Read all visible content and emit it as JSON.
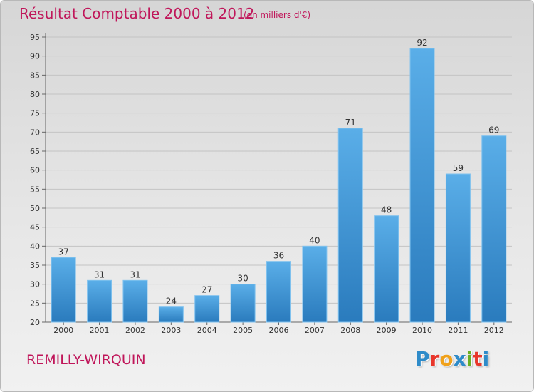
{
  "header": {
    "title": "Résultat Comptable 2000 à 2012",
    "unit": "(en milliers d'€)"
  },
  "footer": {
    "location": "REMILLY-WIRQUIN",
    "logo_text": "Proxiti",
    "logo_colors": [
      "#2e8bc9",
      "#e8362b",
      "#f0a11b",
      "#2e8bc9",
      "#6ab023",
      "#e8362b",
      "#2e8bc9"
    ]
  },
  "colors": {
    "title": "#c0165a",
    "bar_top": "#5aaee8",
    "bar_bottom": "#2a7bbd",
    "grid": "#c4c4c4",
    "text": "#333333"
  },
  "chart_data": {
    "type": "bar",
    "title": "Résultat Comptable 2000 à 2012",
    "subtitle": "(en milliers d'€)",
    "categories": [
      "2000",
      "2001",
      "2002",
      "2003",
      "2004",
      "2005",
      "2006",
      "2007",
      "2008",
      "2009",
      "2010",
      "2011",
      "2012"
    ],
    "values": [
      37,
      31,
      31,
      24,
      27,
      30,
      36,
      40,
      71,
      48,
      92,
      59,
      69
    ],
    "ylim": [
      20,
      95
    ],
    "yticks": [
      20,
      25,
      30,
      35,
      40,
      45,
      50,
      55,
      60,
      65,
      70,
      75,
      80,
      85,
      90,
      95
    ],
    "grid": true,
    "legend": "none"
  }
}
